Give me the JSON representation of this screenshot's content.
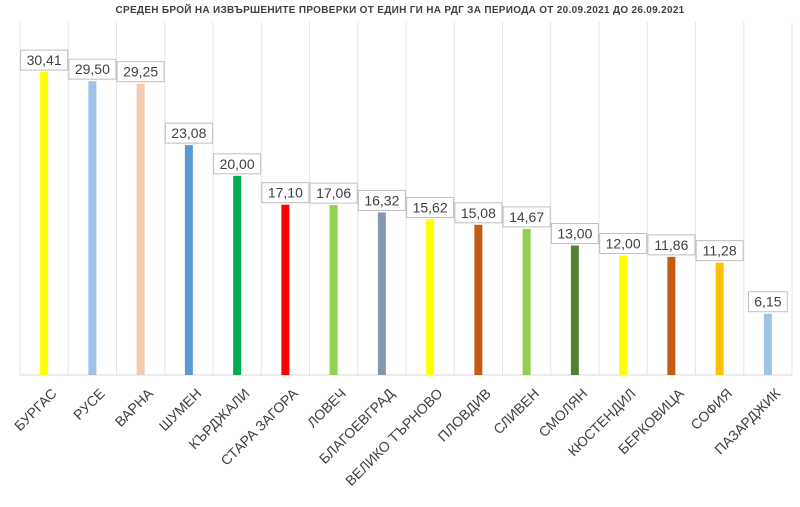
{
  "chart_data": {
    "type": "bar",
    "title": "СРЕДЕН БРОЙ НА ИЗВЪРШЕНИТЕ ПРОВЕРКИ ОТ ЕДИН ГИ НА РДГ ЗА ПЕРИОДА ОТ 20.09.2021 ДО 26.09.2021",
    "categories": [
      "БУРГАС",
      "РУСЕ",
      "ВАРНА",
      "ШУМЕН",
      "КЪРДЖАЛИ",
      "СТАРА ЗАГОРА",
      "ЛОВЕЧ",
      "БЛАГОЕВГРАД",
      "ВЕЛИКО ТЪРНОВО",
      "ПЛОВДИВ",
      "СЛИВЕН",
      "СМОЛЯН",
      "КЮСТЕНДИЛ",
      "БЕРКОВИЦА",
      "СОФИЯ",
      "ПАЗАРДЖИК"
    ],
    "values": [
      30.41,
      29.5,
      29.25,
      23.08,
      20.0,
      17.1,
      17.06,
      16.32,
      15.62,
      15.08,
      14.67,
      13.0,
      12.0,
      11.86,
      11.28,
      6.15
    ],
    "value_labels": [
      "30,41",
      "29,50",
      "29,25",
      "23,08",
      "20,00",
      "17,10",
      "17,06",
      "16,32",
      "15,62",
      "15,08",
      "14,67",
      "13,00",
      "12,00",
      "11,86",
      "11,28",
      "6,15"
    ],
    "colors": [
      "#ffff00",
      "#9dc3e6",
      "#f8cbad",
      "#5b9bd5",
      "#00b050",
      "#ff0000",
      "#92d050",
      "#8497b0",
      "#ffff00",
      "#c55a11",
      "#92d050",
      "#548235",
      "#ffff00",
      "#c55a11",
      "#ffc000",
      "#9dc3e6"
    ],
    "ylim": [
      0,
      35
    ],
    "grid": "vertical",
    "legend": "none"
  }
}
